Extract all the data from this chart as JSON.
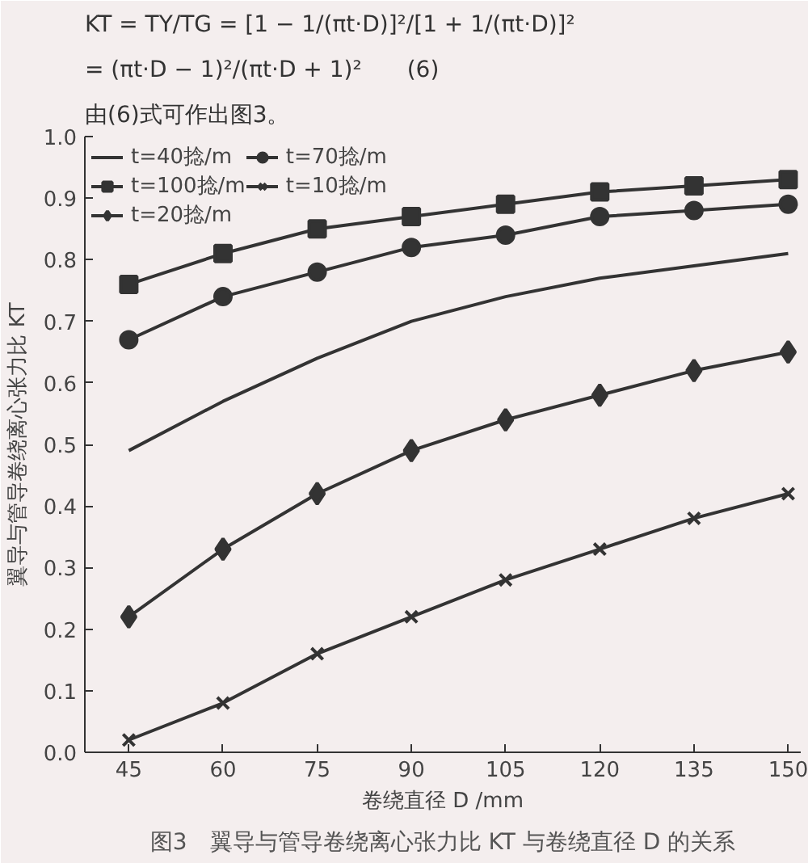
{
  "chart_data": {
    "type": "line",
    "title": "图3　翼导与管导卷绕离心张力比 KT 与卷绕直径 D 的关系",
    "annotations": [
      "KT = TY/TG = [1 − 1/(πt·D)]²/[1 + 1/(πt·D)]²",
      "= (πt·D − 1)²/(πt·D + 1)²　　(6)",
      "由(6)式可作出图3。"
    ],
    "xlabel": "卷绕直径 D /mm",
    "ylabel": "翼导与管导卷绕离心张力比 KT",
    "x": [
      45,
      60,
      75,
      90,
      105,
      120,
      135,
      150
    ],
    "series": [
      {
        "name": "t=40捻/m",
        "color": "#333333",
        "marker": "none",
        "values": [
          0.49,
          0.57,
          0.64,
          0.7,
          0.74,
          0.77,
          0.79,
          0.81
        ]
      },
      {
        "name": "t=100捻/m",
        "color": "#333333",
        "marker": "square",
        "values": [
          0.76,
          0.81,
          0.85,
          0.87,
          0.89,
          0.91,
          0.92,
          0.93
        ]
      },
      {
        "name": "t=20捻/m",
        "color": "#333333",
        "marker": "diamond",
        "values": [
          0.22,
          0.33,
          0.42,
          0.49,
          0.54,
          0.58,
          0.62,
          0.65
        ]
      },
      {
        "name": "t=70捻/m",
        "color": "#333333",
        "marker": "circle",
        "values": [
          0.67,
          0.74,
          0.78,
          0.82,
          0.84,
          0.87,
          0.88,
          0.89
        ]
      },
      {
        "name": "t=10捻/m",
        "color": "#333333",
        "marker": "cross",
        "values": [
          0.02,
          0.08,
          0.16,
          0.22,
          0.28,
          0.33,
          0.38,
          0.42
        ]
      }
    ],
    "xlim": [
      38,
      152
    ],
    "xticks": [
      45,
      60,
      75,
      90,
      105,
      120,
      135,
      150
    ],
    "ylim": [
      0,
      1.0
    ],
    "yticks": [
      {
        "value": 0,
        "label": "0.0"
      },
      0.1,
      0.2,
      0.3,
      0.4,
      0.5,
      0.6,
      0.7,
      0.8,
      0.9,
      {
        "value": 1.0,
        "label": "1.0"
      }
    ],
    "grid": false,
    "legend": "top left",
    "line_style": "solid"
  }
}
